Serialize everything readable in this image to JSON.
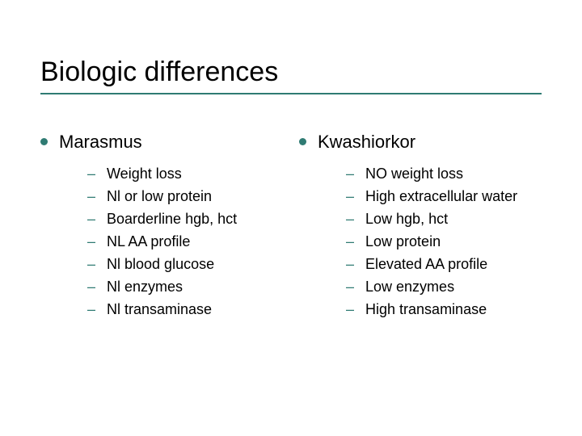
{
  "colors": {
    "accent": "#2f7b73",
    "title_underline": "#2f7b73",
    "text": "#000000",
    "background": "#ffffff"
  },
  "typography": {
    "title_fontsize": 34,
    "column_header_fontsize": 22,
    "item_fontsize": 18,
    "font_family": "Arial"
  },
  "title": "Biologic differences",
  "left": {
    "header": "Marasmus",
    "items": [
      "Weight loss",
      "Nl or low protein",
      "Boarderline hgb, hct",
      "NL AA profile",
      "Nl blood glucose",
      "Nl enzymes",
      "Nl transaminase"
    ]
  },
  "right": {
    "header": "Kwashiorkor",
    "items": [
      "NO weight loss",
      "High extracellular water",
      "Low hgb, hct",
      "Low protein",
      "Elevated AA profile",
      "Low enzymes",
      "High transaminase"
    ]
  }
}
